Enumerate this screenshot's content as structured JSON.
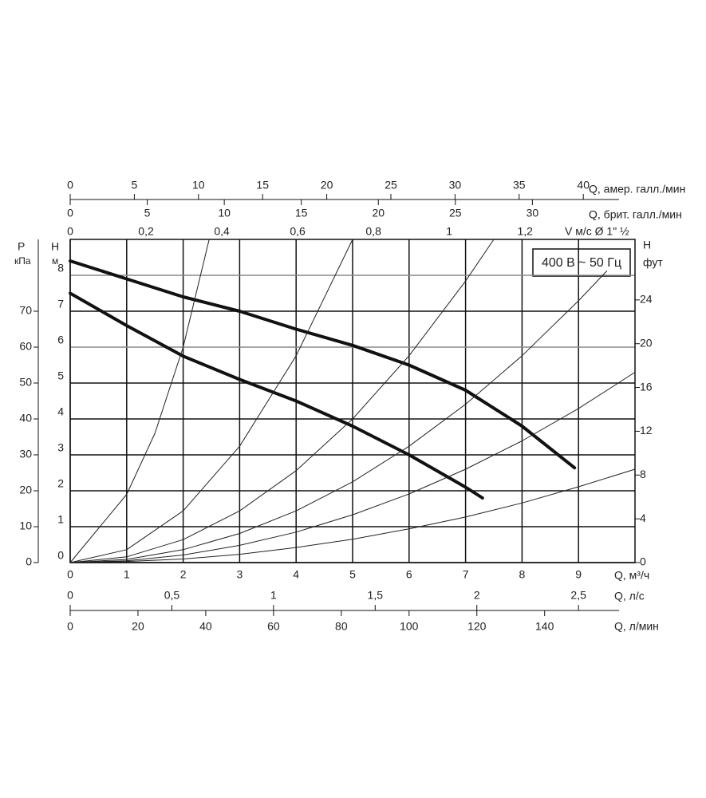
{
  "chart_data": {
    "type": "line",
    "box_label": "400 В ~ 50 Гц",
    "x_label": "Q, м³/ч",
    "xlim": [
      0,
      10
    ],
    "xticks": [
      0,
      1,
      2,
      3,
      4,
      5,
      6,
      7,
      8,
      9
    ],
    "y_label": "H",
    "y_unit": "м",
    "ylim": [
      0,
      9
    ],
    "yticks": [
      0,
      1,
      2,
      3,
      4,
      5,
      6,
      7,
      8
    ],
    "y2_label": "P",
    "y2_unit": "кПа",
    "y2lim": [
      0,
      90
    ],
    "y2ticks": [
      0,
      10,
      20,
      30,
      40,
      50,
      60,
      70
    ],
    "y3_label": "H",
    "y3_unit": "фут",
    "y3lim": [
      0,
      29.53
    ],
    "y3ticks": [
      0,
      4,
      8,
      12,
      16,
      20,
      24
    ],
    "grid": true,
    "x_axes": [
      {
        "label": "Q, л/с",
        "lim": [
          0,
          2.778
        ],
        "ticks": [
          0,
          {
            "value": 0.5,
            "label": "0,5"
          },
          1,
          {
            "value": 1.5,
            "label": "1,5"
          },
          2,
          {
            "value": 2.5,
            "label": "2,5"
          }
        ]
      },
      {
        "label": "Q, л/мин",
        "lim": [
          0,
          166.67
        ],
        "ticks": [
          0,
          20,
          40,
          60,
          80,
          100,
          120,
          140
        ]
      },
      {
        "label": "Q, амер. галл./мин",
        "lim": [
          0,
          44.03
        ],
        "ticks": [
          0,
          5,
          10,
          15,
          20,
          25,
          30,
          35,
          40
        ]
      },
      {
        "label": "Q, брит. галл./мин",
        "lim": [
          0,
          36.66
        ],
        "ticks": [
          0,
          5,
          10,
          15,
          20,
          25,
          30
        ]
      },
      {
        "label": "V м/с Ø 1\" ½",
        "lim": [
          0,
          1.49
        ],
        "ticks": [
          0,
          {
            "value": 0.2,
            "label": "0,2"
          },
          {
            "value": 0.4,
            "label": "0,4"
          },
          {
            "value": 0.6,
            "label": "0,6"
          },
          {
            "value": 0.8,
            "label": "0,8"
          },
          1,
          {
            "value": 1.2,
            "label": "1,2"
          }
        ]
      }
    ],
    "series": [
      {
        "color": "#111111",
        "width": 4,
        "x": [
          0,
          1,
          2,
          3,
          4,
          5,
          6,
          7,
          8,
          8.93
        ],
        "values": [
          8.4,
          7.9,
          7.4,
          7.0,
          6.5,
          6.05,
          5.5,
          4.8,
          3.8,
          2.64
        ]
      },
      {
        "color": "#111111",
        "width": 4,
        "x": [
          0,
          1,
          2,
          3,
          4,
          5,
          6,
          7,
          7.3
        ],
        "values": [
          7.5,
          6.6,
          5.75,
          5.1,
          4.5,
          3.8,
          3.0,
          2.1,
          1.8
        ]
      },
      {
        "color": "#222222",
        "width": 1,
        "x": [
          0,
          1,
          1.5,
          2,
          2.46
        ],
        "values": [
          0,
          1.9,
          3.6,
          6,
          9
        ]
      },
      {
        "color": "#222222",
        "width": 1,
        "x": [
          0,
          1,
          2,
          3,
          4,
          5
        ],
        "values": [
          0,
          0.36,
          1.44,
          3.24,
          5.76,
          9
        ]
      },
      {
        "color": "#222222",
        "width": 1,
        "x": [
          0,
          1,
          2,
          3,
          4,
          5,
          6,
          7,
          7.5
        ],
        "values": [
          0,
          0.16,
          0.64,
          1.44,
          2.56,
          4,
          5.76,
          7.84,
          9
        ]
      },
      {
        "color": "#222222",
        "width": 1,
        "x": [
          0,
          1,
          2,
          3,
          4,
          5,
          6,
          7,
          8,
          9,
          9.5
        ],
        "values": [
          0,
          0.09,
          0.36,
          0.81,
          1.44,
          2.25,
          3.24,
          4.41,
          5.76,
          7.29,
          8.12
        ]
      },
      {
        "color": "#222222",
        "width": 1,
        "x": [
          0,
          1,
          2,
          3,
          4,
          5,
          6,
          7,
          8,
          9,
          10
        ],
        "values": [
          0,
          0.05,
          0.21,
          0.48,
          0.85,
          1.33,
          1.91,
          2.6,
          3.39,
          4.29,
          5.3
        ]
      },
      {
        "color": "#222222",
        "width": 1,
        "x": [
          0,
          1,
          2,
          3,
          4,
          5,
          6,
          7,
          8,
          9,
          10
        ],
        "values": [
          0,
          0.03,
          0.1,
          0.23,
          0.42,
          0.65,
          0.94,
          1.27,
          1.66,
          2.11,
          2.6
        ]
      }
    ]
  }
}
